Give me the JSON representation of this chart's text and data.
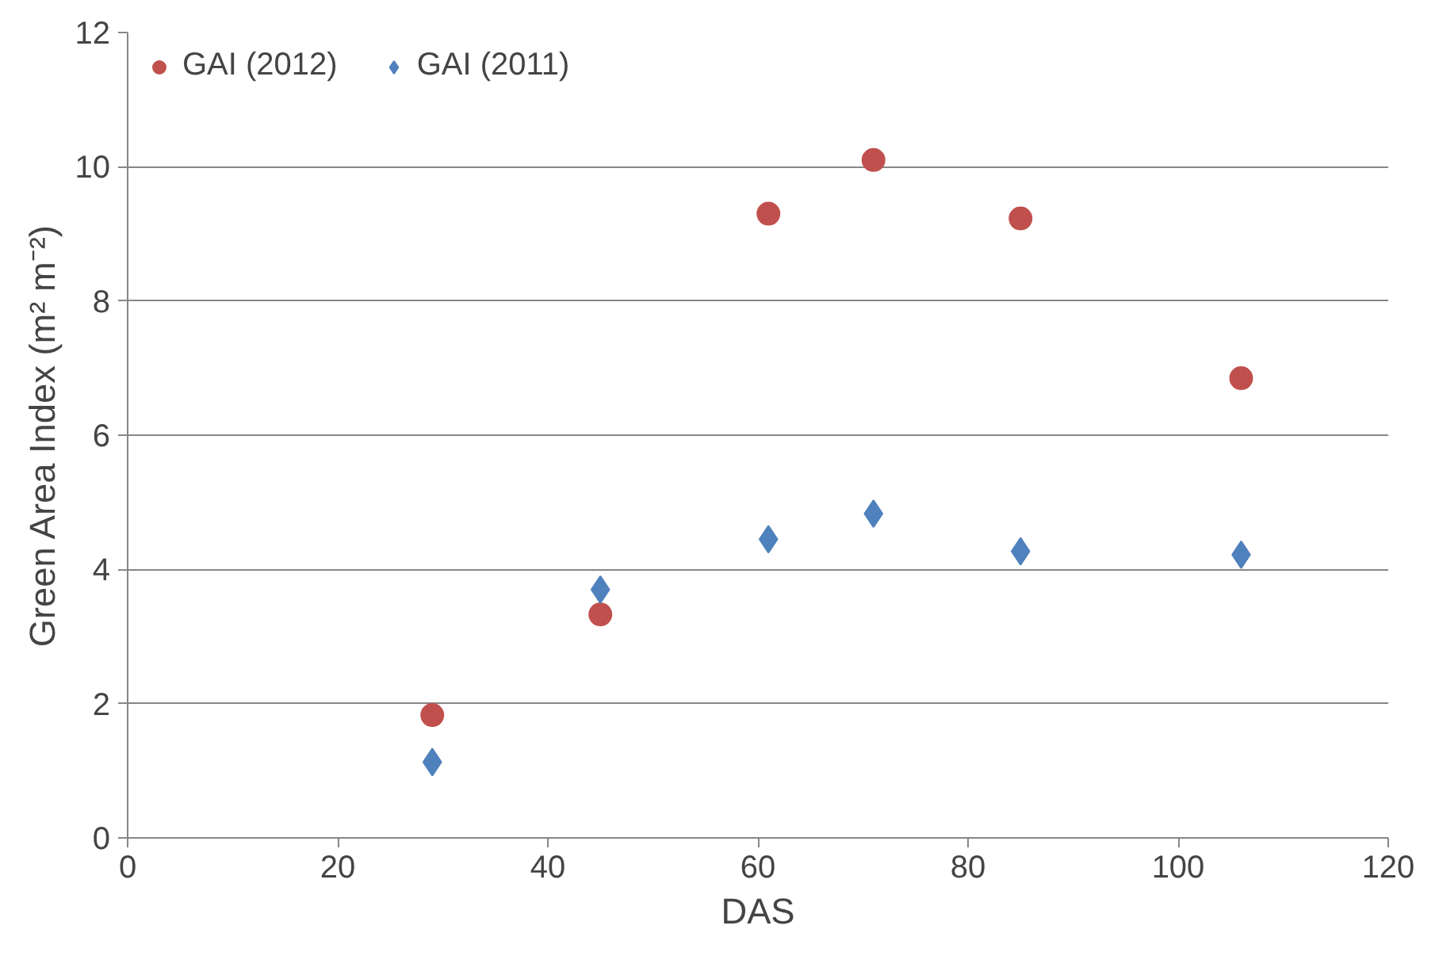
{
  "chart_data": {
    "type": "scatter",
    "xlabel": "DAS",
    "ylabel": "Green Area Index (m² m⁻²)",
    "x": [
      29,
      45,
      61,
      71,
      85,
      106
    ],
    "series": [
      {
        "name": "GAI (2012)",
        "color": "#c0504d",
        "marker": "circle",
        "values": [
          1.83,
          3.33,
          9.3,
          10.1,
          9.23,
          6.85
        ]
      },
      {
        "name": "GAI (2011)",
        "color": "#4f81bd",
        "marker": "diamond",
        "values": [
          1.13,
          3.7,
          4.45,
          4.83,
          4.27,
          4.22
        ]
      }
    ],
    "xlim": [
      0,
      120
    ],
    "xticks": [
      0,
      20,
      40,
      60,
      80,
      100,
      120
    ],
    "ylim": [
      0,
      12
    ],
    "yticks": [
      0,
      2,
      4,
      6,
      8,
      10,
      12
    ],
    "grid": "y",
    "legend": "top left"
  }
}
